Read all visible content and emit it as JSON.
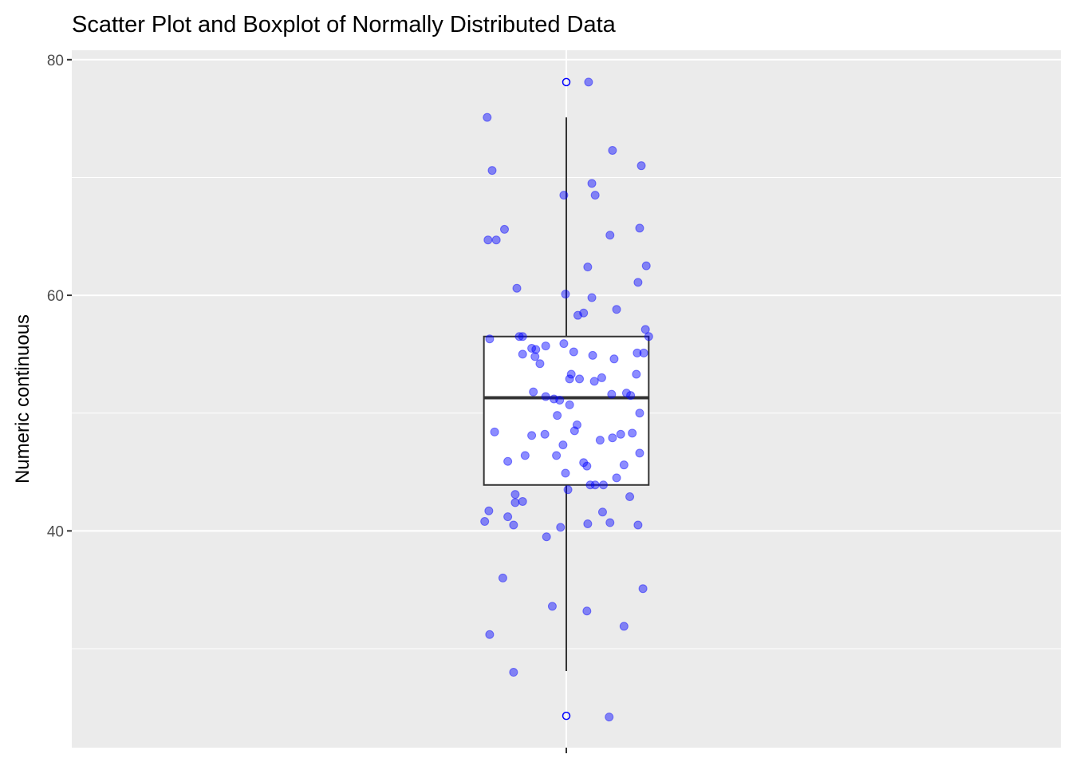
{
  "chart_data": {
    "type": "scatter",
    "title": "Scatter Plot and Boxplot of Normally Distributed Data",
    "xlabel": "",
    "ylabel": "Numeric continuous",
    "categories": [
      ""
    ],
    "ylim": [
      21.6,
      80.8
    ],
    "yticks": [
      40,
      60,
      80
    ],
    "ytick_labels": [
      "40",
      "60",
      "80"
    ],
    "y_minor_grid": [
      30,
      50,
      70
    ],
    "grid": true,
    "point_color": "#0000ff",
    "point_alpha": 0.45,
    "jitter_width": 0.1,
    "boxplot": {
      "lower_whisker": 28.1,
      "q1": 43.9,
      "median": 51.3,
      "q3": 56.5,
      "upper_whisker": 75.1,
      "outliers": [
        78.1,
        24.3
      ],
      "outlier_color": "#0000ff"
    },
    "points": [
      [
        1.027,
        78.1
      ],
      [
        0.904,
        75.1
      ],
      [
        1.056,
        72.3
      ],
      [
        0.91,
        70.6
      ],
      [
        1.091,
        71.0
      ],
      [
        1.031,
        69.5
      ],
      [
        0.997,
        68.5
      ],
      [
        1.035,
        68.5
      ],
      [
        0.925,
        65.6
      ],
      [
        1.089,
        65.7
      ],
      [
        0.905,
        64.7
      ],
      [
        0.915,
        64.7
      ],
      [
        1.053,
        65.1
      ],
      [
        1.026,
        62.4
      ],
      [
        1.097,
        62.5
      ],
      [
        1.087,
        61.1
      ],
      [
        0.94,
        60.6
      ],
      [
        0.999,
        60.1
      ],
      [
        1.031,
        59.8
      ],
      [
        1.061,
        58.8
      ],
      [
        1.021,
        58.5
      ],
      [
        1.014,
        58.3
      ],
      [
        1.096,
        57.1
      ],
      [
        1.1,
        56.5
      ],
      [
        0.907,
        56.3
      ],
      [
        0.943,
        56.5
      ],
      [
        0.947,
        56.5
      ],
      [
        0.997,
        55.9
      ],
      [
        0.975,
        55.7
      ],
      [
        0.958,
        55.5
      ],
      [
        0.963,
        55.4
      ],
      [
        0.947,
        55.0
      ],
      [
        1.009,
        55.2
      ],
      [
        1.086,
        55.1
      ],
      [
        1.094,
        55.1
      ],
      [
        1.032,
        54.9
      ],
      [
        0.962,
        54.8
      ],
      [
        1.058,
        54.6
      ],
      [
        0.968,
        54.2
      ],
      [
        1.006,
        53.3
      ],
      [
        1.085,
        53.3
      ],
      [
        1.004,
        52.9
      ],
      [
        1.016,
        52.9
      ],
      [
        1.043,
        53.0
      ],
      [
        1.034,
        52.7
      ],
      [
        0.96,
        51.8
      ],
      [
        1.073,
        51.7
      ],
      [
        1.055,
        51.6
      ],
      [
        1.078,
        51.5
      ],
      [
        0.975,
        51.4
      ],
      [
        0.985,
        51.2
      ],
      [
        0.992,
        51.1
      ],
      [
        1.004,
        50.7
      ],
      [
        1.089,
        50.0
      ],
      [
        0.989,
        49.8
      ],
      [
        1.013,
        49.0
      ],
      [
        1.01,
        48.5
      ],
      [
        0.913,
        48.4
      ],
      [
        1.08,
        48.3
      ],
      [
        0.974,
        48.2
      ],
      [
        0.958,
        48.1
      ],
      [
        1.066,
        48.2
      ],
      [
        1.056,
        47.9
      ],
      [
        1.041,
        47.7
      ],
      [
        0.996,
        47.3
      ],
      [
        1.089,
        46.6
      ],
      [
        0.988,
        46.4
      ],
      [
        0.95,
        46.4
      ],
      [
        0.929,
        45.9
      ],
      [
        1.07,
        45.6
      ],
      [
        1.021,
        45.8
      ],
      [
        1.025,
        45.5
      ],
      [
        0.999,
        44.9
      ],
      [
        1.061,
        44.5
      ],
      [
        1.029,
        43.9
      ],
      [
        1.035,
        43.9
      ],
      [
        1.045,
        43.9
      ],
      [
        1.002,
        43.5
      ],
      [
        0.938,
        43.1
      ],
      [
        1.077,
        42.9
      ],
      [
        0.947,
        42.5
      ],
      [
        0.938,
        42.4
      ],
      [
        0.906,
        41.7
      ],
      [
        1.044,
        41.6
      ],
      [
        0.929,
        41.2
      ],
      [
        0.901,
        40.8
      ],
      [
        1.053,
        40.7
      ],
      [
        0.936,
        40.5
      ],
      [
        1.026,
        40.6
      ],
      [
        1.087,
        40.5
      ],
      [
        0.993,
        40.3
      ],
      [
        0.976,
        39.5
      ],
      [
        0.923,
        36.0
      ],
      [
        1.093,
        35.1
      ],
      [
        0.983,
        33.6
      ],
      [
        1.025,
        33.2
      ],
      [
        1.07,
        31.9
      ],
      [
        0.907,
        31.2
      ],
      [
        0.936,
        28.0
      ],
      [
        1.052,
        24.2
      ]
    ]
  }
}
